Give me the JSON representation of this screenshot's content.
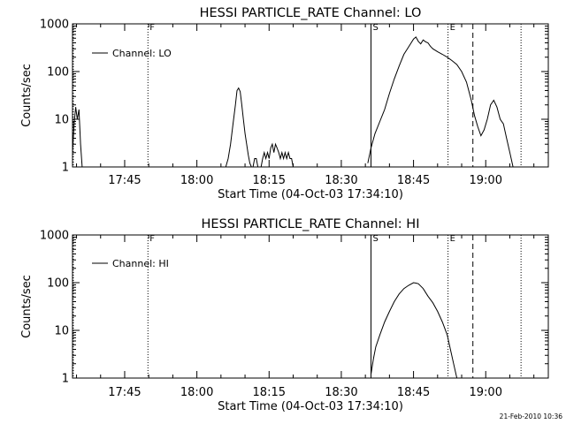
{
  "footer": {
    "timestamp": "21-Feb-2010 10:36"
  },
  "chart_data": [
    {
      "type": "line",
      "title": "HESSI PARTICLE_RATE Channel: LO",
      "xlabel": "Start Time (04-Oct-03 17:34:10)",
      "ylabel": "Counts/sec",
      "yscale": "log",
      "ylim": [
        1,
        1000
      ],
      "xlim": [
        "17:34:10",
        "19:13:00"
      ],
      "x_ticks": [
        "17:45",
        "18:00",
        "18:15",
        "18:30",
        "18:45",
        "19:00"
      ],
      "y_ticks": [
        "1",
        "10",
        "100",
        "1000"
      ],
      "grid": false,
      "legend": {
        "position": "top-left",
        "entries": [
          "Channel: LO"
        ]
      },
      "markers": [
        {
          "label": "",
          "time": "17:34:20",
          "style": "dotted"
        },
        {
          "label": "F",
          "time": "17:49:50",
          "style": "dotted"
        },
        {
          "label": "S",
          "time": "18:36:10",
          "style": "solid"
        },
        {
          "label": "E",
          "time": "18:52:10",
          "style": "dotted"
        },
        {
          "label": "",
          "time": "18:57:20",
          "style": "dashed"
        },
        {
          "label": "",
          "time": "19:07:20",
          "style": "dotted"
        }
      ],
      "series": [
        {
          "name": "Channel: LO",
          "segments": [
            {
              "x": [
                "17:34:10",
                "17:34:30",
                "17:34:50",
                "17:35:10",
                "17:35:30",
                "17:35:50",
                "17:36:10"
              ],
              "y": [
                2,
                8,
                18,
                10,
                16,
                3,
                1
              ]
            },
            {
              "x": [
                "18:06:00",
                "18:06:30",
                "18:07:00",
                "18:07:30",
                "18:08:00",
                "18:08:20",
                "18:08:40",
                "18:09:00",
                "18:09:20",
                "18:09:40",
                "18:10:00",
                "18:10:20",
                "18:10:40",
                "18:11:00",
                "18:11:20"
              ],
              "y": [
                1,
                1.5,
                3,
                8,
                20,
                40,
                45,
                38,
                20,
                10,
                5,
                3,
                1.8,
                1.2,
                1
              ]
            },
            {
              "x": [
                "18:11:40",
                "18:12:00",
                "18:12:20",
                "18:12:40"
              ],
              "y": [
                1,
                1.5,
                1.5,
                1
              ]
            },
            {
              "x": [
                "18:13:20",
                "18:13:40",
                "18:14:00",
                "18:14:20",
                "18:14:40",
                "18:15:00",
                "18:15:20",
                "18:15:40",
                "18:16:00",
                "18:16:20",
                "18:16:40",
                "18:17:00",
                "18:17:20",
                "18:17:40",
                "18:18:00",
                "18:18:20",
                "18:18:40",
                "18:19:00",
                "18:19:20",
                "18:19:40",
                "18:20:00"
              ],
              "y": [
                1,
                1.5,
                2,
                1.5,
                2,
                1.5,
                2.5,
                3,
                2,
                3,
                2.5,
                2,
                1.5,
                2,
                1.5,
                2,
                1.5,
                2,
                1.5,
                1.5,
                1
              ]
            },
            {
              "x": [
                "18:35:30",
                "18:36:10",
                "18:37:00",
                "18:38:00",
                "18:39:00",
                "18:40:00",
                "18:41:00",
                "18:42:00",
                "18:43:00",
                "18:44:00",
                "18:45:00",
                "18:45:30",
                "18:46:00",
                "18:46:30",
                "18:47:00",
                "18:47:30",
                "18:48:00",
                "18:48:30",
                "18:49:00",
                "18:50:00",
                "18:51:00",
                "18:52:00",
                "18:53:00",
                "18:54:00",
                "18:55:00",
                "18:56:00",
                "18:57:00",
                "18:57:40",
                "18:58:20",
                "18:59:00",
                "18:59:40",
                "19:00:20",
                "19:01:00",
                "19:01:40",
                "19:02:20",
                "19:03:00",
                "19:03:40",
                "19:04:20",
                "19:05:00",
                "19:05:40"
              ],
              "y": [
                1.2,
                2.5,
                5,
                9,
                16,
                35,
                70,
                130,
                230,
                330,
                480,
                530,
                430,
                380,
                460,
                420,
                400,
                340,
                300,
                260,
                230,
                200,
                170,
                140,
                100,
                60,
                25,
                12,
                7,
                4.5,
                6,
                10,
                20,
                25,
                18,
                10,
                8,
                4,
                2,
                1
              ]
            }
          ]
        }
      ]
    },
    {
      "type": "line",
      "title": "HESSI PARTICLE_RATE Channel: HI",
      "xlabel": "Start Time (04-Oct-03 17:34:10)",
      "ylabel": "Counts/sec",
      "yscale": "log",
      "ylim": [
        1,
        1000
      ],
      "xlim": [
        "17:34:10",
        "19:13:00"
      ],
      "x_ticks": [
        "17:45",
        "18:00",
        "18:15",
        "18:30",
        "18:45",
        "19:00"
      ],
      "y_ticks": [
        "1",
        "10",
        "100",
        "1000"
      ],
      "grid": false,
      "legend": {
        "position": "top-left",
        "entries": [
          "Channel: HI"
        ]
      },
      "markers": [
        {
          "label": "",
          "time": "17:34:20",
          "style": "dotted"
        },
        {
          "label": "F",
          "time": "17:49:50",
          "style": "dotted"
        },
        {
          "label": "S",
          "time": "18:36:10",
          "style": "solid"
        },
        {
          "label": "E",
          "time": "18:52:10",
          "style": "dotted"
        },
        {
          "label": "",
          "time": "18:57:20",
          "style": "dashed"
        },
        {
          "label": "",
          "time": "19:07:20",
          "style": "dotted"
        }
      ],
      "series": [
        {
          "name": "Channel: HI",
          "segments": [
            {
              "x": [
                "18:36:10",
                "18:36:40",
                "18:37:10",
                "18:38:00",
                "18:39:00",
                "18:40:00",
                "18:41:00",
                "18:42:00",
                "18:43:00",
                "18:44:00",
                "18:45:00",
                "18:45:30",
                "18:46:00",
                "18:47:00",
                "18:48:00",
                "18:49:00",
                "18:50:00",
                "18:51:00",
                "18:52:00",
                "18:52:40",
                "18:53:20",
                "18:54:00"
              ],
              "y": [
                1.2,
                2.5,
                4.5,
                8,
                15,
                25,
                40,
                58,
                75,
                88,
                100,
                98,
                95,
                75,
                52,
                38,
                25,
                15,
                8,
                4,
                2,
                1
              ]
            }
          ]
        }
      ]
    }
  ]
}
